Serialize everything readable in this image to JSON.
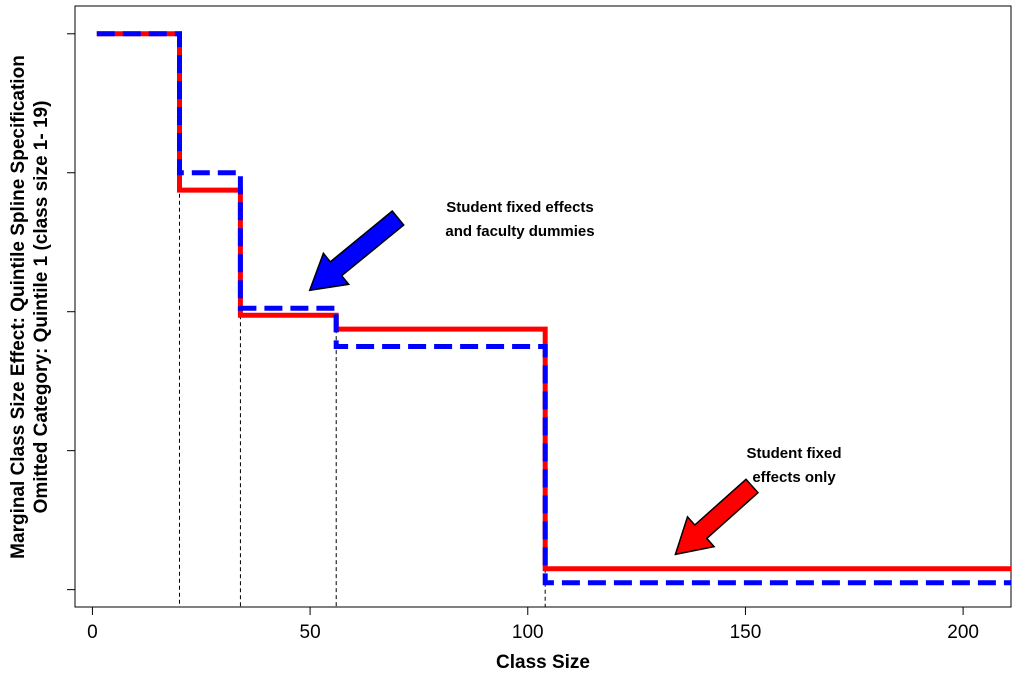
{
  "chart_data": {
    "type": "line",
    "title": "",
    "xlabel": "Class Size",
    "ylabel_line1": "Marginal Class Size Effect: Quintile Spline Specification",
    "ylabel_line2": "Omitted Category: Quintile 1 (class size 1- 19)",
    "xlim": [
      -4,
      211
    ],
    "ylim": [
      -0.0165,
      0.0008
    ],
    "x_ticks": [
      0,
      50,
      100,
      150,
      200
    ],
    "x_tick_labels": [
      "0",
      "50",
      "100",
      "150",
      "200"
    ],
    "y_ticks": [
      -0.016,
      -0.012,
      -0.008,
      -0.004,
      0.0
    ],
    "y_tick_labels": [
      "",
      "",
      "",
      "",
      ""
    ],
    "grid": false,
    "series": [
      {
        "name": "Student fixed effects only",
        "color": "#ff0000",
        "style": "solid",
        "x": [
          1,
          20,
          20,
          34,
          34,
          56,
          56,
          104,
          104,
          211
        ],
        "y": [
          0.0,
          0.0,
          -0.0045,
          -0.0045,
          -0.0081,
          -0.0081,
          -0.0085,
          -0.0085,
          -0.0154,
          -0.0154
        ]
      },
      {
        "name": "Student fixed effects and faculty dummies",
        "color": "#0000ff",
        "style": "dashed",
        "x": [
          1,
          20,
          20,
          34,
          34,
          56,
          56,
          104,
          104,
          211
        ],
        "y": [
          0.0,
          0.0,
          -0.004,
          -0.004,
          -0.0079,
          -0.0079,
          -0.009,
          -0.009,
          -0.0158,
          -0.0158
        ]
      }
    ],
    "vlines": [
      20,
      34,
      56,
      104
    ],
    "annotations": [
      {
        "lines": [
          "Student fixed effects",
          "and faculty dummies"
        ],
        "arrow_color": "#0000ff",
        "target_x": 49,
        "target_y": -0.0075
      },
      {
        "lines": [
          "Student fixed",
          "effects only"
        ],
        "arrow_color": "#ff0000",
        "target_x": 133,
        "target_y": -0.0151
      }
    ]
  }
}
